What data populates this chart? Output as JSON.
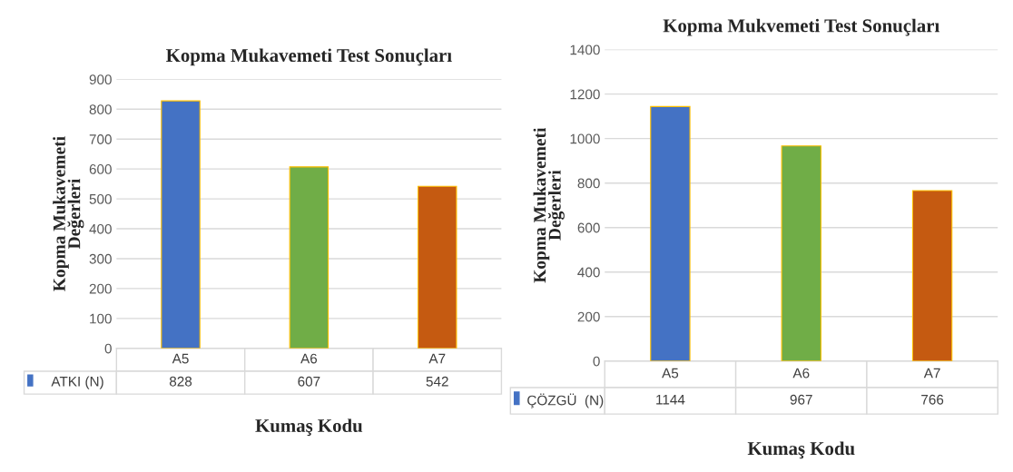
{
  "chart_data": [
    {
      "type": "bar",
      "title": "Kopma Mukavemeti Test Sonuçları",
      "xlabel": "Kumaş Kodu",
      "ylabel": "Kopma Mukavemeti\nDeğerleri",
      "categories": [
        "A5",
        "A6",
        "A7"
      ],
      "series": [
        {
          "name": "ATKI (N)",
          "color": "#4472c4",
          "colors": [
            "#4472c4",
            "#70ad47",
            "#c55a11"
          ],
          "values": [
            828,
            607,
            542
          ]
        }
      ],
      "ylim": [
        0,
        900
      ],
      "yticks": [
        0,
        100,
        200,
        300,
        400,
        500,
        600,
        700,
        800,
        900
      ],
      "grid": "y",
      "data_labels": true
    },
    {
      "type": "bar",
      "title": "Kopma Mukvemeti Test Sonuçları",
      "xlabel": "Kumaş Kodu",
      "ylabel": "Kopma Mukavemeti\nDeğerleri",
      "categories": [
        "A5",
        "A6",
        "A7"
      ],
      "series": [
        {
          "name": "ÇÖZGÜ  (N)",
          "color": "#4472c4",
          "colors": [
            "#4472c4",
            "#70ad47",
            "#c55a11"
          ],
          "values": [
            1144,
            967,
            766
          ]
        }
      ],
      "ylim": [
        0,
        1400
      ],
      "yticks": [
        0,
        200,
        400,
        600,
        800,
        1000,
        1200,
        1400
      ],
      "grid": "y",
      "data_labels": true
    }
  ]
}
